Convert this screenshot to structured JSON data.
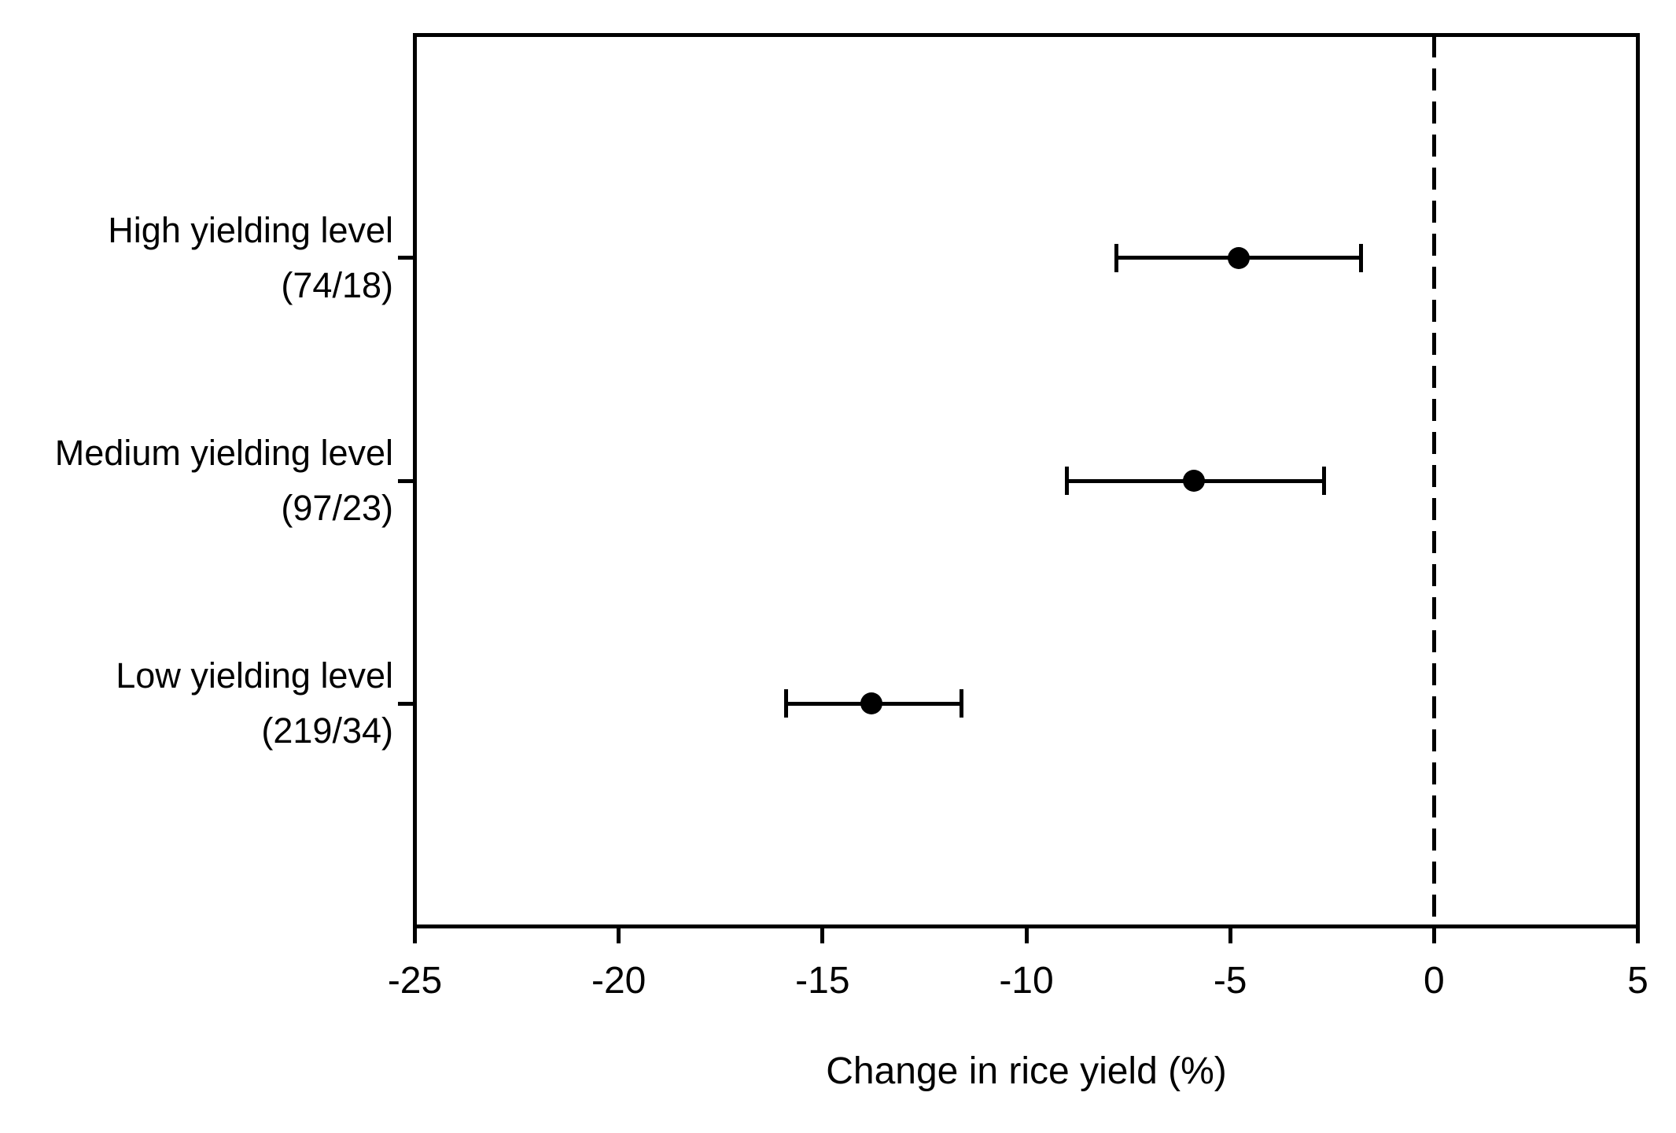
{
  "figure": {
    "background_color": "#ffffff",
    "ink_color": "#000000"
  },
  "chart_data": {
    "type": "scatter",
    "subtype": "forest-plot-horizontal-error-bars",
    "title": "",
    "xlabel": "Change in rice yield (%)",
    "ylabel": "",
    "xlim": [
      -25,
      5
    ],
    "xticks": [
      -25,
      -20,
      -15,
      -10,
      -5,
      0,
      5
    ],
    "grid": false,
    "legend": false,
    "reference_line": {
      "x": 0,
      "style": "dashed"
    },
    "marker": {
      "shape": "circle",
      "color": "#000000"
    },
    "categories": [
      {
        "label": "High yielding level",
        "sublabel": "(74/18)",
        "value": -4.8,
        "ci_low": -7.8,
        "ci_high": -1.8
      },
      {
        "label": "Medium yielding level",
        "sublabel": "(97/23)",
        "value": -5.9,
        "ci_low": -9.0,
        "ci_high": -2.7
      },
      {
        "label": "Low yielding level",
        "sublabel": "(219/34)",
        "value": -13.8,
        "ci_low": -15.9,
        "ci_high": -11.6
      }
    ]
  }
}
